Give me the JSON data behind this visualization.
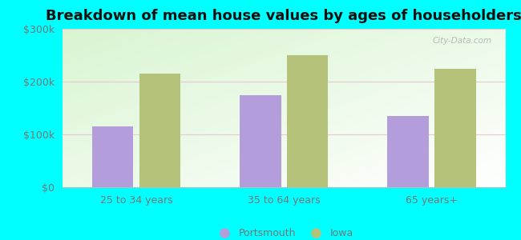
{
  "title": "Breakdown of mean house values by ages of householders",
  "categories": [
    "25 to 34 years",
    "35 to 64 years",
    "65 years+"
  ],
  "portsmouth_values": [
    115000,
    175000,
    135000
  ],
  "iowa_values": [
    215000,
    250000,
    225000
  ],
  "portsmouth_color": "#b39ddb",
  "iowa_color": "#b5c27a",
  "ylim": [
    0,
    300000
  ],
  "yticks": [
    0,
    100000,
    200000,
    300000
  ],
  "ytick_labels": [
    "$0",
    "$100k",
    "$200k",
    "$300k"
  ],
  "bar_width": 0.28,
  "background_color": "#00ffff",
  "legend_labels": [
    "Portsmouth",
    "Iowa"
  ],
  "title_fontsize": 13,
  "watermark": "City-Data.com"
}
